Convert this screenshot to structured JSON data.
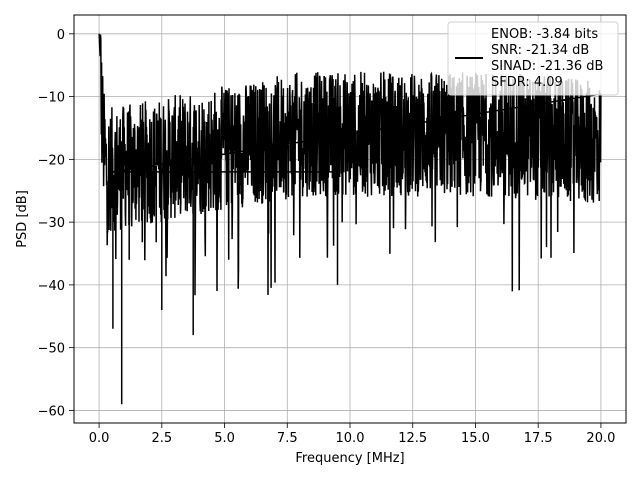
{
  "chart_data": {
    "type": "line",
    "xlabel": "Frequency [MHz]",
    "ylabel": "PSD [dB]",
    "xlim": [
      -1.0,
      21.0
    ],
    "ylim": [
      -62.0,
      3.0
    ],
    "x_ticks": [
      0.0,
      2.5,
      5.0,
      7.5,
      10.0,
      12.5,
      15.0,
      17.5,
      20.0
    ],
    "x_tick_labels": [
      "0.0",
      "2.5",
      "5.0",
      "7.5",
      "10.0",
      "12.5",
      "15.0",
      "17.5",
      "20.0"
    ],
    "y_ticks": [
      0,
      -10,
      -20,
      -30,
      -40,
      -50,
      -60
    ],
    "y_tick_labels": [
      "0",
      "−10",
      "−20",
      "−30",
      "−40",
      "−50",
      "−60"
    ],
    "grid": true,
    "legend_position": "top-right",
    "series": [
      {
        "color": "#000000",
        "x": [
          0.0,
          0.05,
          0.1,
          0.2,
          0.3,
          0.4,
          0.5,
          0.55,
          0.7,
          0.9,
          1.2,
          1.5,
          1.8,
          2.2,
          2.5,
          3.0,
          3.5,
          3.75,
          4.0,
          5.0,
          6.0,
          7.0,
          8.0,
          9.0,
          9.5,
          10.0,
          11.0,
          12.0,
          13.0,
          14.0,
          15.0,
          16.0,
          17.0,
          18.0,
          19.0,
          20.0
        ],
        "y": [
          0,
          -4,
          -12,
          -19,
          -22,
          -25,
          -27,
          -47,
          -35,
          -59,
          -36,
          -30,
          -24,
          -22,
          -44,
          -28,
          -25,
          -48,
          -20,
          -19,
          -18,
          -16,
          -15,
          -14,
          -40,
          -15,
          -20,
          -17,
          -16,
          -15,
          -14,
          -15,
          -16,
          -17,
          -19,
          -20
        ]
      }
    ],
    "legend": {
      "lines": [
        "ENOB: -3.84 bits",
        "SNR: -21.34 dB",
        "SINAD: -21.36 dB",
        "SFDR: 4.09"
      ]
    }
  }
}
